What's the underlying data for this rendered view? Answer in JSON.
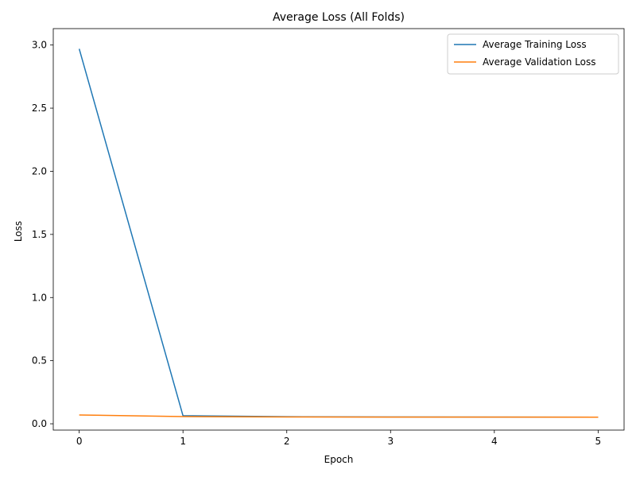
{
  "chart_data": {
    "type": "line",
    "title": "Average Loss (All Folds)",
    "xlabel": "Epoch",
    "ylabel": "Loss",
    "x": [
      0,
      1,
      2,
      3,
      4,
      5
    ],
    "xlim": [
      -0.25,
      5.25
    ],
    "ylim": [
      -0.05,
      3.13
    ],
    "xticks": [
      0,
      1,
      2,
      3,
      4,
      5
    ],
    "yticks": [
      0.0,
      0.5,
      1.0,
      1.5,
      2.0,
      2.5,
      3.0
    ],
    "ytick_labels": [
      "0.0",
      "0.5",
      "1.0",
      "1.5",
      "2.0",
      "2.5",
      "3.0"
    ],
    "grid": false,
    "legend_position": "top-right",
    "series": [
      {
        "name": "Average Training Loss",
        "color": "#1f77b4",
        "values": [
          2.97,
          0.064,
          0.056,
          0.054,
          0.053,
          0.052
        ]
      },
      {
        "name": "Average Validation Loss",
        "color": "#ff7f0e",
        "values": [
          0.07,
          0.057,
          0.054,
          0.053,
          0.053,
          0.052
        ]
      }
    ]
  }
}
